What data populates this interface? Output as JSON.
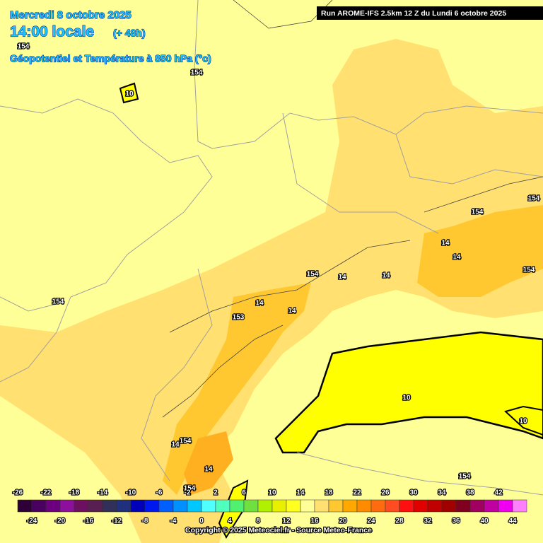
{
  "header": {
    "date": "Mercredi 8 octobre 2025",
    "time": "14:00 locale",
    "lead": "(+ 48h)",
    "field": "Géopotentiel et Température à 850 hPa (°c)",
    "run": "Run AROME-IFS 2.5km 12 Z du Lundi 6 octobre 2025"
  },
  "map": {
    "contour_labels": [
      "154",
      "154",
      "10",
      "154",
      "154",
      "14",
      "14",
      "154",
      "154",
      "14",
      "14",
      "14",
      "14",
      "153",
      "154",
      "10",
      "10",
      "14",
      "154",
      "14",
      "154",
      "154"
    ]
  },
  "legend": {
    "values": [
      -26,
      -24,
      -22,
      -20,
      -18,
      -16,
      -14,
      -12,
      -10,
      -8,
      -6,
      -4,
      -2,
      0,
      2,
      4,
      6,
      8,
      10,
      12,
      14,
      16,
      18,
      20,
      22,
      24,
      26,
      28,
      30,
      32,
      34,
      36,
      38,
      40,
      42,
      44
    ],
    "colors": [
      "#2e0038",
      "#4a005e",
      "#6c0080",
      "#8c109c",
      "#6e1060",
      "#582050",
      "#303058",
      "#20307c",
      "#0000b8",
      "#0018f0",
      "#0060ff",
      "#0090ff",
      "#00c8ff",
      "#50ffff",
      "#50ffc0",
      "#50f070",
      "#70e040",
      "#b0f000",
      "#e8f000",
      "#ffff20",
      "#ffff98",
      "#ffe070",
      "#ffc830",
      "#ffa800",
      "#ff8c00",
      "#ff6c10",
      "#ff4c20",
      "#ff1010",
      "#e00000",
      "#c00000",
      "#a00000",
      "#800020",
      "#a00060",
      "#c000a0",
      "#f000f0",
      "#ff80ff"
    ]
  },
  "footer": {
    "copyright": "Copyright © 2025 Meteociel.fr - Source Meteo-France"
  }
}
